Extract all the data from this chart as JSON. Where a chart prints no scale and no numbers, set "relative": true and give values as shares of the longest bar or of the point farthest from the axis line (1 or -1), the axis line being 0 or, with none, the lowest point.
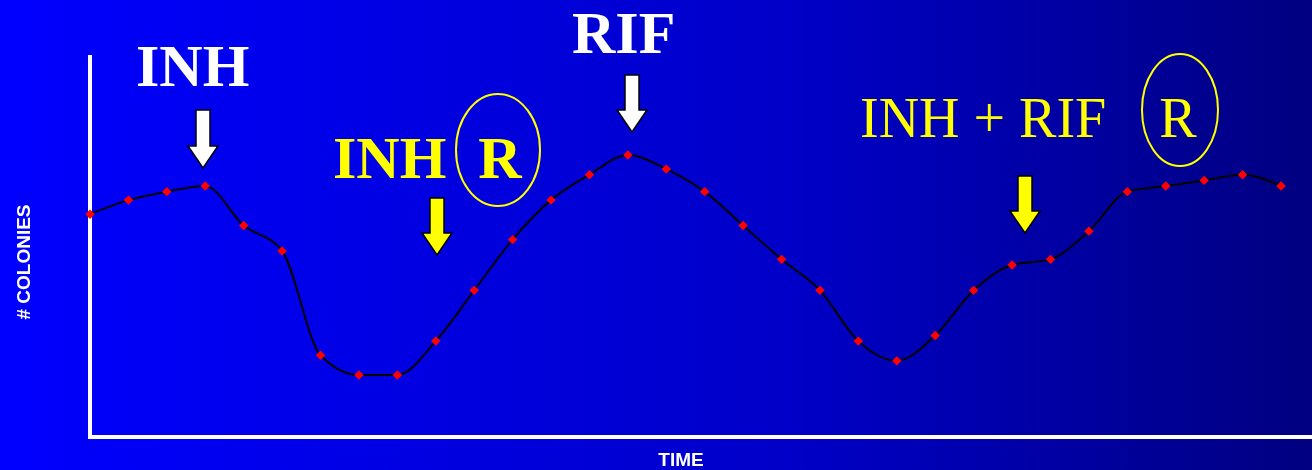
{
  "chart_data": {
    "type": "line",
    "relative": true,
    "xlabel": "TIME",
    "ylabel": "# COLONIES",
    "marker": "diamond",
    "line_style": "solid",
    "categories": [
      null,
      null,
      null,
      null,
      null,
      null,
      null,
      null,
      null,
      null,
      null,
      null,
      null,
      null,
      null,
      null,
      null,
      null,
      null,
      null,
      null,
      null,
      null,
      null,
      null,
      null,
      null,
      null,
      null,
      null,
      null,
      null
    ],
    "series": [
      {
        "color": "#000000",
        "values": [
          0.79,
          0.84,
          0.87,
          0.89,
          0.75,
          0.66,
          0.29,
          0.22,
          0.22,
          0.34,
          0.52,
          0.7,
          0.84,
          0.93,
          1,
          0.95,
          0.87,
          0.75,
          0.63,
          0.52,
          0.34,
          0.27,
          0.36,
          0.52,
          0.61,
          0.63,
          0.73,
          0.87,
          0.89,
          0.91,
          0.93,
          0.89
        ]
      }
    ],
    "annotations": [
      "INH",
      "INH R",
      "RIF",
      "INH + RIF R"
    ]
  }
}
